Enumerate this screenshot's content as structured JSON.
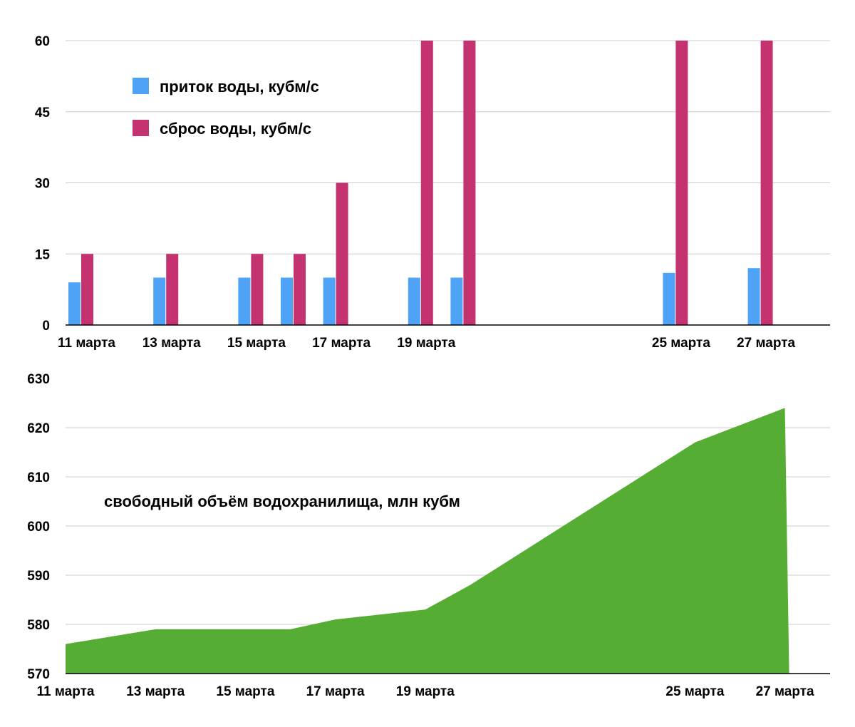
{
  "chart_data": [
    {
      "type": "bar",
      "x_tick_labels": [
        "11 марта",
        "13 марта",
        "15 марта",
        "17 марта",
        "19 марта",
        "25 марта",
        "27 марта"
      ],
      "ylim": [
        0,
        60
      ],
      "yticks": [
        "0",
        "15",
        "30",
        "45",
        "60"
      ],
      "grid": true,
      "legend_position": "top-left",
      "series": [
        {
          "name": "приток воды, кубм/с",
          "color": "#4fa3f7",
          "points": [
            {
              "x": "11 марта",
              "y": 9
            },
            {
              "x": "13 марта",
              "y": 10
            },
            {
              "x": "15 марта",
              "y": 10
            },
            {
              "x": "16 марта",
              "y": 10
            },
            {
              "x": "17 марта",
              "y": 10
            },
            {
              "x": "19 марта",
              "y": 10
            },
            {
              "x": "20 марта",
              "y": 10
            },
            {
              "x": "25 марта",
              "y": 11
            },
            {
              "x": "27 марта",
              "y": 12
            }
          ]
        },
        {
          "name": "сброс воды, кубм/с",
          "color": "#c4326f",
          "points": [
            {
              "x": "11 марта",
              "y": 15
            },
            {
              "x": "13 марта",
              "y": 15
            },
            {
              "x": "15 марта",
              "y": 15
            },
            {
              "x": "16 марта",
              "y": 15
            },
            {
              "x": "17 марта",
              "y": 30
            },
            {
              "x": "19 марта",
              "y": 60
            },
            {
              "x": "20 марта",
              "y": 60
            },
            {
              "x": "25 марта",
              "y": 60
            },
            {
              "x": "27 марта",
              "y": 60
            }
          ]
        }
      ]
    },
    {
      "type": "area",
      "x_tick_labels": [
        "11 марта",
        "13 марта",
        "15 марта",
        "17 марта",
        "19 марта",
        "25 марта",
        "27 марта"
      ],
      "ylim": [
        570,
        630
      ],
      "yticks": [
        "570",
        "580",
        "590",
        "600",
        "610",
        "620",
        "630"
      ],
      "grid": true,
      "series": [
        {
          "name": "свободный объём водохранилища, млн кубм",
          "color": "#55ad34",
          "points": [
            {
              "x": "11 марта",
              "y": 576
            },
            {
              "x": "13 марта",
              "y": 579
            },
            {
              "x": "15 марта",
              "y": 579
            },
            {
              "x": "16 марта",
              "y": 579
            },
            {
              "x": "17 марта",
              "y": 581
            },
            {
              "x": "19 марта",
              "y": 583
            },
            {
              "x": "20 марта",
              "y": 588
            },
            {
              "x": "25 марта",
              "y": 617
            },
            {
              "x": "27 марта",
              "y": 624
            }
          ]
        }
      ]
    }
  ]
}
